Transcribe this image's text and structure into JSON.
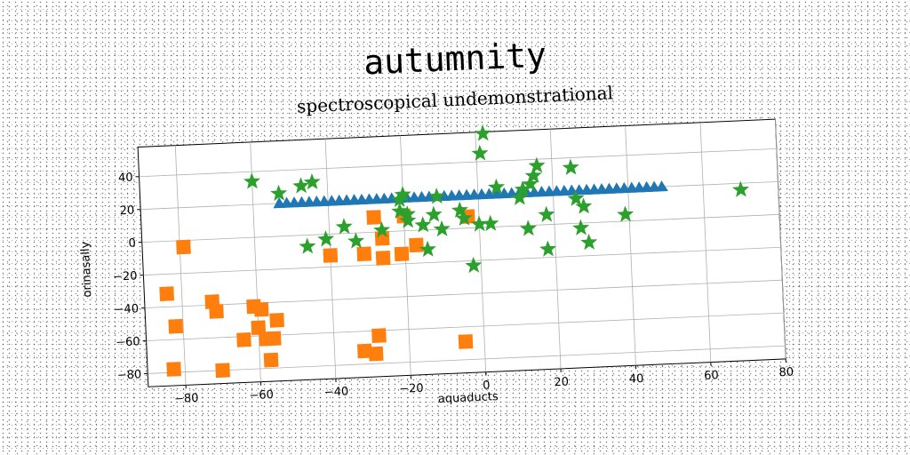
{
  "chart_data": {
    "type": "scatter",
    "title": "autumnity",
    "subtitle": "spectroscopical undemonstrational",
    "xlabel": "aquaducts",
    "ylabel": "orinasally",
    "xlim": [
      -90,
      80
    ],
    "ylim": [
      -88,
      58
    ],
    "xticks": [
      -80,
      -60,
      -40,
      -20,
      0,
      20,
      40,
      60,
      80
    ],
    "yticks": [
      -80,
      -60,
      -40,
      -20,
      0,
      20,
      40
    ],
    "grid": true,
    "series": [
      {
        "marker": "triangle",
        "color": "#1f77b4",
        "points": [
          [
            -53,
            20
          ],
          [
            -51,
            20
          ],
          [
            -49,
            20
          ],
          [
            -47,
            20
          ],
          [
            -45,
            20
          ],
          [
            -43,
            20
          ],
          [
            -41,
            20
          ],
          [
            -39,
            20
          ],
          [
            -37,
            20
          ],
          [
            -35,
            20
          ],
          [
            -33,
            20
          ],
          [
            -31,
            20
          ],
          [
            -29,
            20
          ],
          [
            -27,
            20
          ],
          [
            -25,
            20
          ],
          [
            -23,
            20
          ],
          [
            -21,
            20
          ],
          [
            -19,
            20
          ],
          [
            -17,
            20
          ],
          [
            -15,
            20
          ],
          [
            -13,
            20
          ],
          [
            -11,
            20
          ],
          [
            -9,
            20
          ],
          [
            -7,
            20
          ],
          [
            -5,
            20
          ],
          [
            -3,
            20
          ],
          [
            -1,
            20
          ],
          [
            1,
            20
          ],
          [
            3,
            20
          ],
          [
            5,
            20
          ],
          [
            7,
            20
          ],
          [
            9,
            20
          ],
          [
            11,
            20
          ],
          [
            13,
            20
          ],
          [
            15,
            20
          ],
          [
            17,
            20
          ],
          [
            19,
            20
          ],
          [
            21,
            20
          ],
          [
            23,
            20
          ],
          [
            25,
            20
          ],
          [
            27,
            20
          ],
          [
            29,
            20
          ],
          [
            31,
            20
          ],
          [
            33,
            20
          ],
          [
            35,
            20
          ],
          [
            37,
            20
          ],
          [
            39,
            20
          ],
          [
            41,
            20
          ],
          [
            43,
            20
          ],
          [
            45,
            20
          ],
          [
            47,
            20
          ],
          [
            49,
            20
          ]
        ]
      },
      {
        "marker": "square",
        "color": "#ff7f0e",
        "points": [
          [
            -84,
            -32
          ],
          [
            -82,
            -52
          ],
          [
            -83,
            -78
          ],
          [
            -79,
            -4
          ],
          [
            -72,
            -38
          ],
          [
            -71,
            -44
          ],
          [
            -70,
            -80
          ],
          [
            -64,
            -62
          ],
          [
            -61,
            -42
          ],
          [
            -60,
            -55
          ],
          [
            -59,
            -44
          ],
          [
            -58,
            -62
          ],
          [
            -57,
            -75
          ],
          [
            -56,
            -62
          ],
          [
            -55,
            -51
          ],
          [
            -40,
            -13
          ],
          [
            -32,
            -72
          ],
          [
            -29,
            -74
          ],
          [
            -31,
            -13
          ],
          [
            -28,
            -63
          ],
          [
            -28,
            9
          ],
          [
            -26,
            -4
          ],
          [
            -26,
            -16
          ],
          [
            -21,
            -14
          ],
          [
            -20,
            9
          ],
          [
            -17,
            -9
          ],
          [
            -5,
            -69
          ],
          [
            -3,
            7
          ]
        ]
      },
      {
        "marker": "star",
        "color": "#2ca02c",
        "points": [
          [
            -60,
            34
          ],
          [
            -53,
            26
          ],
          [
            -47,
            30
          ],
          [
            -44,
            32
          ],
          [
            -46,
            -7
          ],
          [
            -41,
            -3
          ],
          [
            -36,
            4
          ],
          [
            -33,
            -5
          ],
          [
            -26,
            1
          ],
          [
            -21,
            19
          ],
          [
            -21,
            12
          ],
          [
            -19,
            10
          ],
          [
            -20,
            22
          ],
          [
            -19,
            6
          ],
          [
            -15,
            3
          ],
          [
            -14,
            -12
          ],
          [
            -12,
            9
          ],
          [
            -11,
            20
          ],
          [
            -10,
            0
          ],
          [
            -5,
            11
          ],
          [
            -4,
            6
          ],
          [
            0,
            2
          ],
          [
            -2,
            -23
          ],
          [
            1,
            45
          ],
          [
            2,
            57
          ],
          [
            3,
            2
          ],
          [
            5,
            24
          ],
          [
            11,
            17
          ],
          [
            12,
            22
          ],
          [
            13,
            -2
          ],
          [
            14,
            25
          ],
          [
            15,
            30
          ],
          [
            16,
            36
          ],
          [
            18,
            6
          ],
          [
            18,
            -15
          ],
          [
            25,
            34
          ],
          [
            26,
            15
          ],
          [
            27,
            -3
          ],
          [
            28,
            10
          ],
          [
            29,
            -12
          ],
          [
            39,
            4
          ],
          [
            70,
            16
          ]
        ]
      }
    ]
  }
}
